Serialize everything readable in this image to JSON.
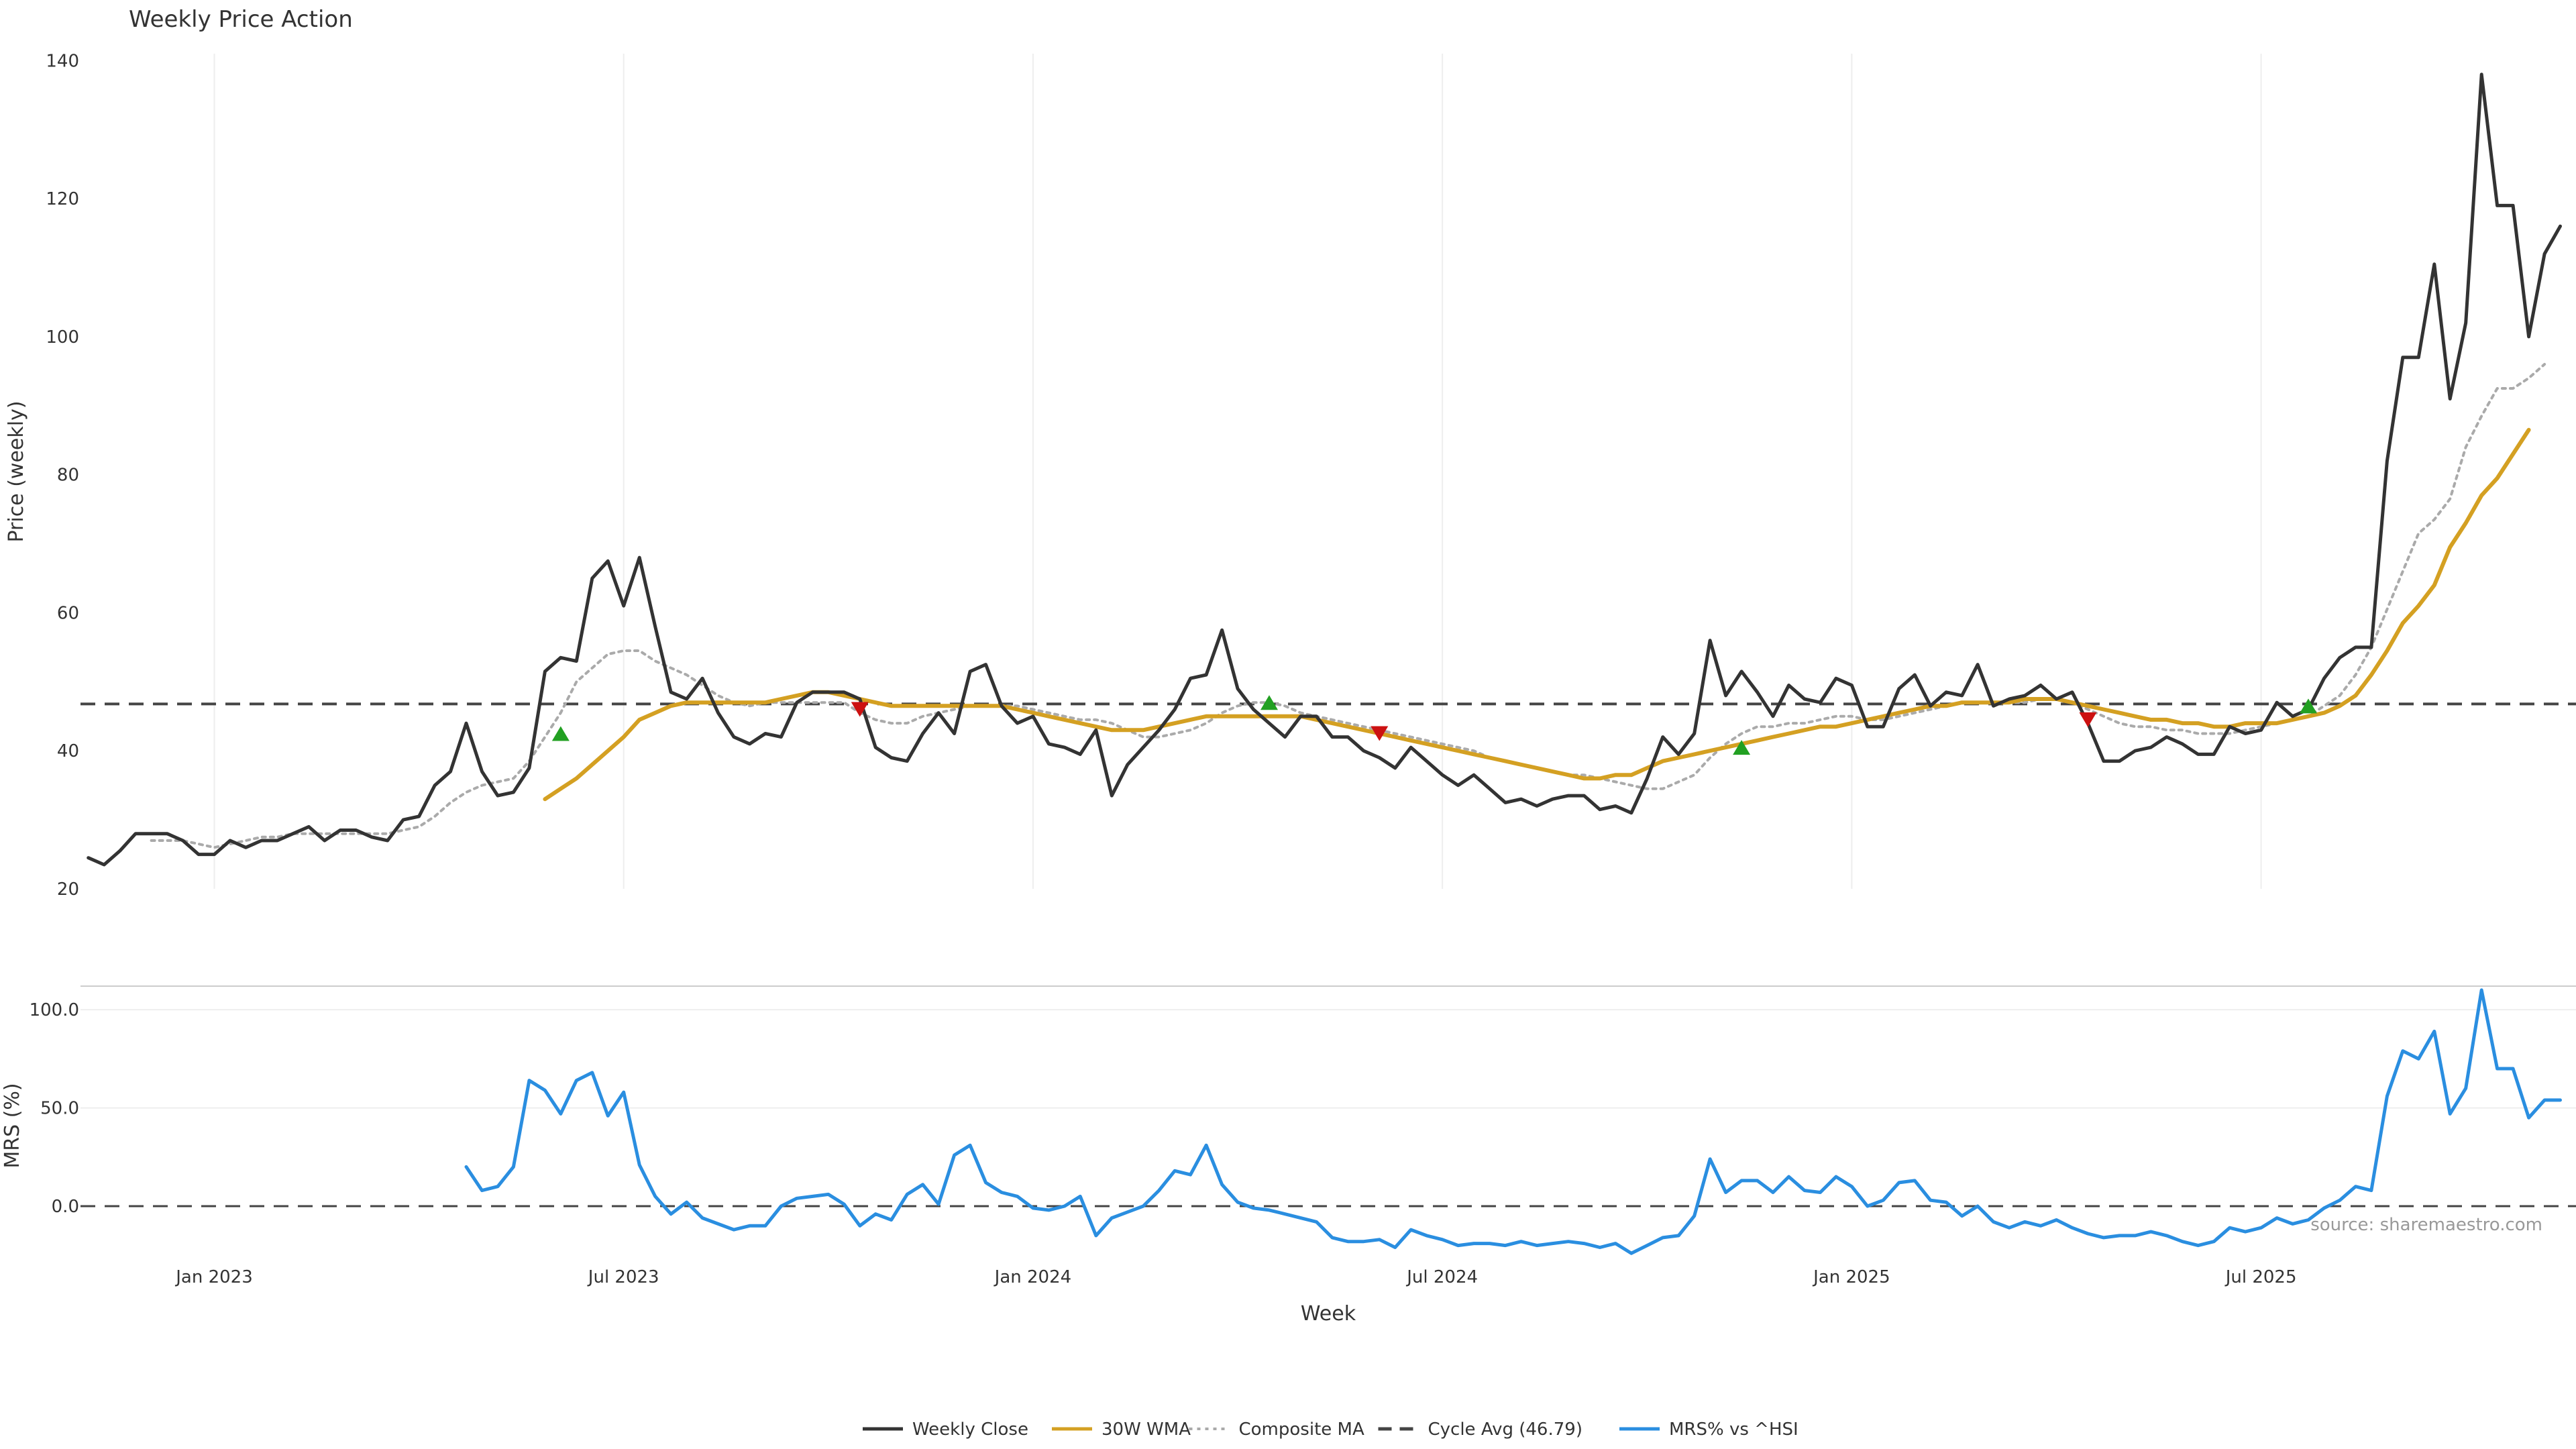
{
  "chart_data": {
    "type": "line",
    "title": "Weekly Price Action",
    "source_text": "source: sharemaestro.com",
    "xlabel": "Week",
    "x_ticks": [
      {
        "label": "Jan 2023",
        "week": 13
      },
      {
        "label": "Jul 2023",
        "week": 39
      },
      {
        "label": "Jan 2024",
        "week": 65
      },
      {
        "label": "Jul 2024",
        "week": 91
      },
      {
        "label": "Jan 2025",
        "week": 117
      },
      {
        "label": "Jul 2025",
        "week": 143
      }
    ],
    "x_range": [
      4.5,
      163
    ],
    "colors": {
      "close": "#333333",
      "wma": "#d4a022",
      "composite": "#aaaaaa",
      "cycle": "#444444",
      "mrs": "#2a8ee0",
      "buy": "#22a022",
      "sell": "#cc1111",
      "grid": "#eeeeee"
    },
    "price_panel": {
      "ylabel": "Price (weekly)",
      "ylim": [
        20,
        141
      ],
      "y_ticks": [
        20,
        40,
        60,
        80,
        100,
        120,
        140
      ],
      "cycle_avg": 46.79,
      "series": [
        {
          "name": "Weekly Close",
          "key": "close",
          "start": 5,
          "values": [
            24.5,
            23.5,
            25.5,
            28,
            28,
            28,
            27,
            25,
            25,
            27,
            26,
            27,
            27,
            28,
            29,
            27,
            28.5,
            28.5,
            27.5,
            27,
            30,
            30.5,
            35,
            37,
            44,
            37,
            33.5,
            34,
            37.5,
            51.5,
            53.5,
            53,
            65,
            67.5,
            61,
            68,
            58,
            48.5,
            47.5,
            50.5,
            45.5,
            42,
            41,
            42.5,
            42,
            47,
            48.5,
            48.5,
            48.5,
            47.5,
            40.5,
            39,
            38.5,
            42.5,
            45.5,
            42.5,
            51.5,
            52.5,
            46.5,
            44,
            45,
            41,
            40.5,
            39.5,
            43,
            33.5,
            38,
            40.5,
            43,
            46,
            50.5,
            51,
            57.5,
            49,
            46,
            44,
            42,
            45,
            45,
            42,
            42,
            40,
            39,
            37.5,
            40.5,
            38.5,
            36.5,
            35,
            36.5,
            34.5,
            32.5,
            33,
            32,
            33,
            33.5,
            33.5,
            31.5,
            32,
            31,
            36,
            42,
            39.5,
            42.5,
            56,
            48,
            51.5,
            48.5,
            45,
            49.5,
            47.5,
            47,
            50.5,
            49.5,
            43.5,
            43.5,
            49,
            51,
            46.5,
            48.5,
            48,
            52.5,
            46.5,
            47.5,
            48,
            49.5,
            47.5,
            48.5,
            44,
            38.5,
            38.5,
            40,
            40.5,
            42,
            41,
            39.5,
            39.5,
            43.5,
            42.5,
            43,
            47,
            45,
            46,
            50.5,
            53.5,
            55,
            55,
            82,
            97,
            97,
            110.5,
            91,
            102,
            138,
            119,
            119,
            100,
            112,
            116
          ]
        },
        {
          "name": "30W WMA",
          "key": "wma",
          "start": 34,
          "values": [
            33,
            34.5,
            36,
            38,
            40,
            42,
            44.5,
            45.5,
            46.5,
            47,
            47,
            47,
            47,
            47,
            47,
            47.5,
            48,
            48.5,
            48.5,
            48,
            47.5,
            47,
            46.5,
            46.5,
            46.5,
            46.5,
            46.5,
            46.5,
            46.5,
            46.5,
            46,
            45.5,
            45,
            44.5,
            44,
            43.5,
            43,
            43,
            43,
            43.5,
            44,
            44.5,
            45,
            45,
            45,
            45,
            45,
            45,
            45,
            44.5,
            44,
            43.5,
            43,
            42.5,
            42,
            41.5,
            41,
            40.5,
            40,
            39.5,
            39,
            38.5,
            38,
            37.5,
            37,
            36.5,
            36,
            36,
            36.5,
            36.5,
            37.5,
            38.5,
            39,
            39.5,
            40,
            40.5,
            41,
            41.5,
            42,
            42.5,
            43,
            43.5,
            43.5,
            44,
            44.5,
            45,
            45.5,
            46,
            46.5,
            46.5,
            47,
            47,
            47,
            47,
            47.5,
            47.5,
            47.5,
            47,
            46.5,
            46,
            45.5,
            45,
            44.5,
            44.5,
            44,
            44,
            43.5,
            43.5,
            44,
            44,
            44,
            44.5,
            45,
            45.5,
            46.5,
            48,
            51,
            54.5,
            58.5,
            61,
            64,
            69.5,
            73,
            77,
            79.5,
            83,
            86.5
          ]
        },
        {
          "name": "Composite MA",
          "key": "composite",
          "start": 9,
          "values": [
            27,
            27,
            27,
            26.5,
            26,
            26.5,
            27,
            27.5,
            27.5,
            28,
            28,
            28,
            28,
            28,
            28,
            28,
            28.5,
            29,
            30.5,
            32.5,
            34,
            35,
            35.5,
            36,
            38.5,
            42,
            45.5,
            50,
            52,
            54,
            54.5,
            54.5,
            53,
            52,
            51,
            49.5,
            48,
            47,
            46.5,
            47,
            47,
            47,
            47,
            47,
            47,
            45.5,
            44.5,
            44,
            44,
            45,
            45.5,
            46,
            46.5,
            46.5,
            46.5,
            46.5,
            46,
            45.5,
            45,
            44.5,
            44.5,
            44,
            43,
            42,
            42,
            42.5,
            43,
            44,
            45.5,
            46.5,
            47,
            47,
            46.5,
            45.5,
            45,
            44.5,
            44,
            43.5,
            43,
            42.5,
            42,
            41.5,
            41,
            40.5,
            40,
            39,
            38.5,
            38,
            37.5,
            37,
            36.5,
            36.5,
            36,
            35.5,
            35,
            34.5,
            34.5,
            35.5,
            36.5,
            39,
            41,
            42.5,
            43.5,
            43.5,
            44,
            44,
            44.5,
            45,
            45,
            44.5,
            44.5,
            45,
            45.5,
            46,
            46.5,
            47,
            47,
            47,
            47,
            47,
            47.5,
            47.5,
            47,
            46,
            45,
            44,
            43.5,
            43.5,
            43,
            43,
            42.5,
            42.5,
            42.5,
            43,
            43.5,
            44,
            44.5,
            45,
            46.5,
            48,
            51,
            55,
            60.5,
            66,
            71.5,
            73.5,
            76.5,
            84,
            88.5,
            92.5,
            92.5,
            94,
            96
          ]
        }
      ],
      "buy_signals": [
        {
          "week": 35,
          "value": 42.5
        },
        {
          "week": 80,
          "value": 47
        },
        {
          "week": 110,
          "value": 40.5
        },
        {
          "week": 146,
          "value": 46.5
        }
      ],
      "sell_signals": [
        {
          "week": 54,
          "value": 46
        },
        {
          "week": 87,
          "value": 42.5
        },
        {
          "week": 132,
          "value": 44.5
        }
      ]
    },
    "mrs_panel": {
      "ylabel": "MRS (%)",
      "ylim": [
        -28,
        112
      ],
      "y_ticks": [
        0.0,
        50.0,
        100.0
      ],
      "y_tick_labels": [
        "0.0",
        "50.0",
        "100.0"
      ],
      "zero_line": 0,
      "series": [
        {
          "name": "MRS% vs ^HSI",
          "key": "mrs",
          "start": 29,
          "values": [
            20,
            8,
            10,
            20,
            64,
            59,
            47,
            64,
            68,
            46,
            58,
            21,
            5,
            -4,
            2,
            -6,
            -9,
            -12,
            -10,
            -10,
            0,
            4,
            5,
            6,
            1,
            -10,
            -4,
            -7,
            6,
            11,
            1,
            26,
            31,
            12,
            7,
            5,
            -1,
            -2,
            0,
            5,
            -15,
            -6,
            -3,
            0,
            8,
            18,
            16,
            31,
            11,
            2,
            -1,
            -2,
            -4,
            -6,
            -8,
            -16,
            -18,
            -18,
            -17,
            -21,
            -12,
            -15,
            -17,
            -20,
            -19,
            -19,
            -20,
            -18,
            -20,
            -19,
            -18,
            -19,
            -21,
            -19,
            -24,
            -20,
            -16,
            -15,
            -5,
            24,
            7,
            13,
            13,
            7,
            15,
            8,
            7,
            15,
            10,
            0,
            3,
            12,
            13,
            3,
            2,
            -5,
            0,
            -8,
            -11,
            -8,
            -10,
            -7,
            -11,
            -14,
            -16,
            -15,
            -15,
            -13,
            -15,
            -18,
            -20,
            -18,
            -11,
            -13,
            -11,
            -6,
            -9,
            -7,
            -1,
            3,
            10,
            8,
            56,
            79,
            75,
            89,
            47,
            60,
            110,
            70,
            70,
            45,
            54,
            54
          ]
        }
      ]
    },
    "legend": [
      {
        "label": "Weekly Close",
        "key": "close",
        "style": "solid"
      },
      {
        "label": "30W WMA",
        "key": "wma",
        "style": "solid"
      },
      {
        "label": "Composite MA",
        "key": "composite",
        "style": "dotted"
      },
      {
        "label": "Cycle Avg (46.79)",
        "key": "cycle",
        "style": "dashed"
      },
      {
        "label": "MRS% vs ^HSI",
        "key": "mrs",
        "style": "solid"
      }
    ]
  }
}
